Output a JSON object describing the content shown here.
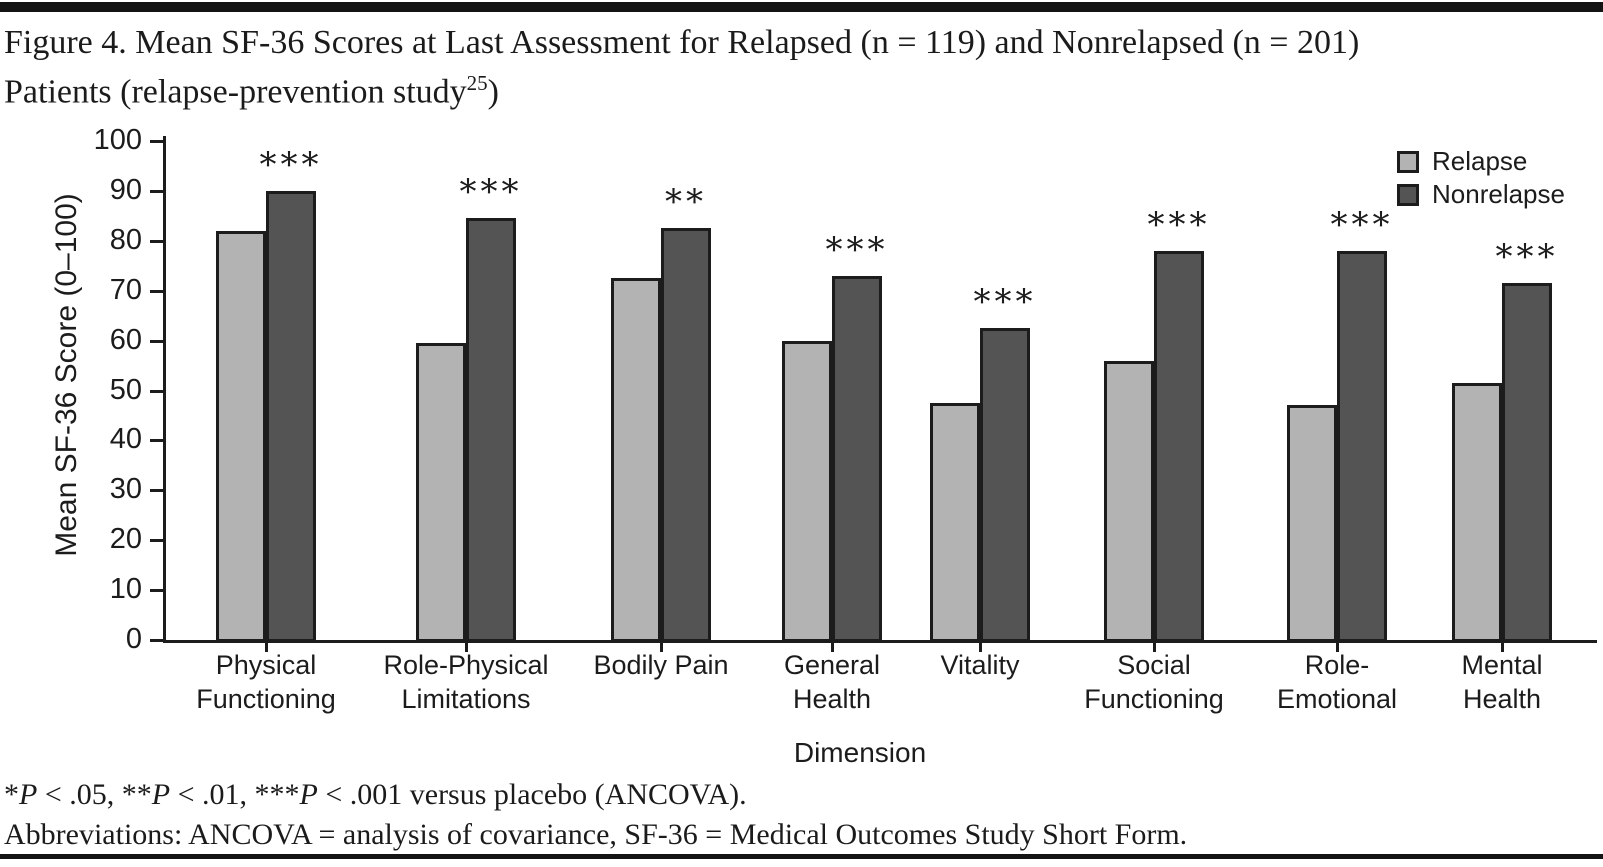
{
  "figure": {
    "title": {
      "line1": "Figure 4. Mean SF-36 Scores at Last Assessment for Relapsed (n = 119) and Nonrelapsed (n = 201)",
      "line2_pre": "Patients (relapse-prevention study",
      "superscript": "25",
      "line2_post": ")"
    },
    "footnotes": {
      "significance_segments": [
        {
          "text": "*"
        },
        {
          "text": "P",
          "italic": true
        },
        {
          "text": " < .05, **"
        },
        {
          "text": "P",
          "italic": true
        },
        {
          "text": " < .01, ***"
        },
        {
          "text": "P",
          "italic": true
        },
        {
          "text": " < .001 versus placebo (ANCOVA)."
        }
      ],
      "abbreviations": "Abbreviations: ANCOVA = analysis of covariance, SF-36 = Medical Outcomes Study Short Form."
    }
  },
  "chart_data": {
    "type": "bar",
    "title": "Mean SF-36 Scores at Last Assessment for Relapsed (n = 119) and Nonrelapsed (n = 201) Patients (relapse-prevention study)",
    "categories": [
      "Physical Functioning",
      "Role-Physical Limitations",
      "Bodily Pain",
      "General Health",
      "Vitality",
      "Social Functioning",
      "Role-Emotional",
      "Mental Health"
    ],
    "category_label_lines": [
      [
        "Physical",
        "Functioning"
      ],
      [
        "Role-Physical",
        "Limitations"
      ],
      [
        "Bodily Pain"
      ],
      [
        "General",
        "Health"
      ],
      [
        "Vitality"
      ],
      [
        "Social",
        "Functioning"
      ],
      [
        "Role-",
        "Emotional"
      ],
      [
        "Mental",
        "Health"
      ]
    ],
    "series": [
      {
        "name": "Relapse",
        "color": "#b3b3b3",
        "values": [
          82,
          59.5,
          72.5,
          60,
          47.5,
          56,
          47,
          51.5
        ]
      },
      {
        "name": "Nonrelapse",
        "color": "#545454",
        "values": [
          90,
          84.5,
          82.5,
          73,
          62.5,
          78,
          78,
          71.5
        ]
      }
    ],
    "significance": [
      "***",
      "***",
      "**",
      "***",
      "***",
      "***",
      "***",
      "***"
    ],
    "xlabel": "Dimension",
    "ylabel": "Mean SF-36 Score (0–100)",
    "ylim": [
      0,
      100
    ],
    "ytick_step": 10,
    "yticks": [
      0,
      10,
      20,
      30,
      40,
      50,
      60,
      70,
      80,
      90,
      100
    ],
    "grid": false,
    "legend_position": "top-right",
    "bar_border_color": "#1c1c1c",
    "text_color": "#1c1c1c"
  }
}
